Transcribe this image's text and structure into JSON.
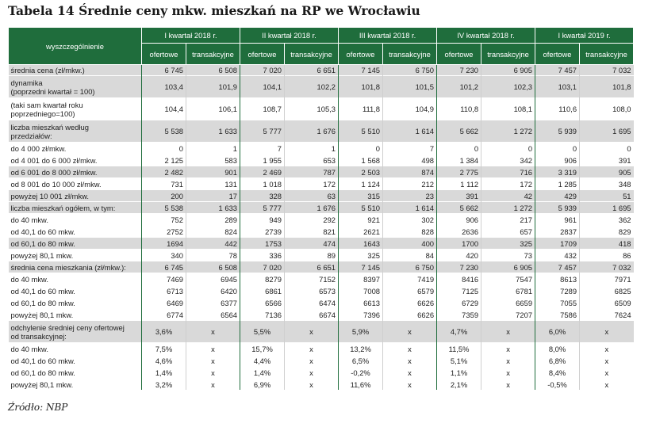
{
  "title": "Tabela 14 Średnie ceny mkw. mieszkań na RP we Wrocławiu",
  "source": "Źródło: NBP",
  "table": {
    "row_header_label": "wyszczególnienie",
    "periods": [
      "I kwartał 2018 r.",
      "II kwartał 2018 r.",
      "III kwartał 2018 r.",
      "IV kwartał 2018 r.",
      "I kwartał 2019 r."
    ],
    "subheaders": [
      "ofertowe",
      "transakcyjne"
    ],
    "rows": [
      {
        "label": [
          "średnia cena (zł/mkw.)"
        ],
        "shade": true,
        "align": "num",
        "values": [
          "6 745",
          "6 508",
          "7 020",
          "6 651",
          "7 145",
          "6 750",
          "7 230",
          "6 905",
          "7 457",
          "7 032"
        ]
      },
      {
        "label": [
          "dynamika",
          "(poprzedni kwartał = 100)"
        ],
        "shade": true,
        "align": "num",
        "values": [
          "103,4",
          "101,9",
          "104,1",
          "102,2",
          "101,8",
          "101,5",
          "101,2",
          "102,3",
          "103,1",
          "101,8"
        ]
      },
      {
        "label": [
          "(taki sam kwartał roku",
          "poprzedniego=100)"
        ],
        "shade": false,
        "align": "num",
        "values": [
          "104,4",
          "106,1",
          "108,7",
          "105,3",
          "111,8",
          "104,9",
          "110,8",
          "108,1",
          "110,6",
          "108,0"
        ]
      },
      {
        "label": [
          "liczba mieszkań według",
          "przedziałów:"
        ],
        "shade": true,
        "align": "num",
        "values": [
          "5 538",
          "1 633",
          "5 777",
          "1 676",
          "5 510",
          "1 614",
          "5 662",
          "1 272",
          "5 939",
          "1 695"
        ]
      },
      {
        "label": [
          "do 4 000 zł/mkw."
        ],
        "shade": false,
        "align": "num",
        "values": [
          "0",
          "1",
          "7",
          "1",
          "0",
          "7",
          "0",
          "0",
          "0",
          "0"
        ]
      },
      {
        "label": [
          "od 4 001 do 6 000 zł/mkw."
        ],
        "shade": false,
        "align": "num",
        "values": [
          "2 125",
          "583",
          "1 955",
          "653",
          "1 568",
          "498",
          "1 384",
          "342",
          "906",
          "391"
        ]
      },
      {
        "label": [
          "od 6 001 do 8 000 zł/mkw."
        ],
        "shade": true,
        "align": "num",
        "values": [
          "2 482",
          "901",
          "2 469",
          "787",
          "2 503",
          "874",
          "2 775",
          "716",
          "3 319",
          "905"
        ]
      },
      {
        "label": [
          "od 8 001 do 10 000 zł/mkw."
        ],
        "shade": false,
        "align": "num",
        "values": [
          "731",
          "131",
          "1 018",
          "172",
          "1 124",
          "212",
          "1 112",
          "172",
          "1 285",
          "348"
        ]
      },
      {
        "label": [
          "powyżej 10 001 zł/mkw."
        ],
        "shade": true,
        "align": "num",
        "values": [
          "200",
          "17",
          "328",
          "63",
          "315",
          "23",
          "391",
          "42",
          "429",
          "51"
        ]
      },
      {
        "label": [
          "liczba mieszkań ogółem, w tym:"
        ],
        "shade": true,
        "align": "num",
        "values": [
          "5 538",
          "1 633",
          "5 777",
          "1 676",
          "5 510",
          "1 614",
          "5 662",
          "1 272",
          "5 939",
          "1 695"
        ]
      },
      {
        "label": [
          "do 40 mkw."
        ],
        "shade": false,
        "align": "num",
        "values": [
          "752",
          "289",
          "949",
          "292",
          "921",
          "302",
          "906",
          "217",
          "961",
          "362"
        ]
      },
      {
        "label": [
          "od 40,1 do 60 mkw."
        ],
        "shade": false,
        "align": "num",
        "values": [
          "2752",
          "824",
          "2739",
          "821",
          "2621",
          "828",
          "2636",
          "657",
          "2837",
          "829"
        ]
      },
      {
        "label": [
          "od 60,1 do 80 mkw."
        ],
        "shade": true,
        "align": "num",
        "values": [
          "1694",
          "442",
          "1753",
          "474",
          "1643",
          "400",
          "1700",
          "325",
          "1709",
          "418"
        ]
      },
      {
        "label": [
          "powyżej 80,1 mkw."
        ],
        "shade": false,
        "align": "num",
        "values": [
          "340",
          "78",
          "336",
          "89",
          "325",
          "84",
          "420",
          "73",
          "432",
          "86"
        ]
      },
      {
        "label": [
          "średnia cena mieszkania (zł/mkw.):"
        ],
        "shade": true,
        "align": "num",
        "values": [
          "6 745",
          "6 508",
          "7 020",
          "6 651",
          "7 145",
          "6 750",
          "7 230",
          "6 905",
          "7 457",
          "7 032"
        ]
      },
      {
        "label": [
          "do 40 mkw."
        ],
        "shade": false,
        "align": "num",
        "values": [
          "7469",
          "6945",
          "8279",
          "7152",
          "8397",
          "7419",
          "8416",
          "7547",
          "8613",
          "7971"
        ]
      },
      {
        "label": [
          "od 40,1 do 60 mkw."
        ],
        "shade": false,
        "align": "num",
        "values": [
          "6713",
          "6420",
          "6861",
          "6573",
          "7008",
          "6579",
          "7125",
          "6781",
          "7289",
          "6825"
        ]
      },
      {
        "label": [
          "od 60,1 do 80 mkw."
        ],
        "shade": false,
        "align": "num",
        "values": [
          "6469",
          "6377",
          "6566",
          "6474",
          "6613",
          "6626",
          "6729",
          "6659",
          "7055",
          "6509"
        ]
      },
      {
        "label": [
          "powyżej 80,1 mkw."
        ],
        "shade": false,
        "align": "num",
        "values": [
          "6774",
          "6564",
          "7136",
          "6674",
          "7396",
          "6626",
          "7359",
          "7207",
          "7586",
          "7624"
        ]
      },
      {
        "label": [
          "odchylenie średniej ceny ofertowej",
          "od transakcyjnej:"
        ],
        "shade": true,
        "align": "cen",
        "values": [
          "3,6%",
          "x",
          "5,5%",
          "x",
          "5,9%",
          "x",
          "4,7%",
          "x",
          "6,0%",
          "x"
        ]
      },
      {
        "label": [
          "do 40 mkw."
        ],
        "shade": false,
        "align": "cen",
        "values": [
          "7,5%",
          "x",
          "15,7%",
          "x",
          "13,2%",
          "x",
          "11,5%",
          "x",
          "8,0%",
          "x"
        ]
      },
      {
        "label": [
          "od 40,1 do 60 mkw."
        ],
        "shade": false,
        "align": "cen",
        "values": [
          "4,6%",
          "x",
          "4,4%",
          "x",
          "6,5%",
          "x",
          "5,1%",
          "x",
          "6,8%",
          "x"
        ]
      },
      {
        "label": [
          "od 60,1 do 80 mkw."
        ],
        "shade": false,
        "align": "cen",
        "values": [
          "1,4%",
          "x",
          "1,4%",
          "x",
          "-0,2%",
          "x",
          "1,1%",
          "x",
          "8,4%",
          "x"
        ]
      },
      {
        "label": [
          "powyżej 80,1 mkw."
        ],
        "shade": false,
        "align": "cen",
        "values": [
          "3,2%",
          "x",
          "6,9%",
          "x",
          "11,6%",
          "x",
          "2,1%",
          "x",
          "-0,5%",
          "x"
        ]
      }
    ],
    "row_heights": [
      13,
      27,
      27,
      27,
      14,
      14,
      14,
      14,
      14,
      14,
      14,
      14,
      14,
      14,
      14,
      14,
      14,
      14,
      14,
      27,
      14,
      14,
      14,
      14
    ]
  }
}
